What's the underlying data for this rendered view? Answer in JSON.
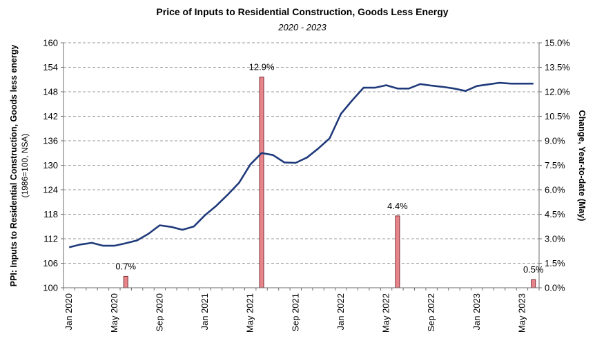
{
  "chart_data": {
    "type": "bar+line",
    "title": "Price of Inputs to Residential Construction, Goods Less Energy",
    "subtitle": "2020 - 2023",
    "ylabel_left": "PPI: Inputs to Residential Construction, Goods less energy",
    "ylabel_left_sub": "(1986=100, NSA)",
    "ylabel_right": "Change, Year-to-date (May)",
    "ylim_left": [
      100,
      160
    ],
    "yticks_left": [
      "100",
      "106",
      "112",
      "118",
      "124",
      "130",
      "136",
      "142",
      "148",
      "154",
      "160"
    ],
    "ylim_right": [
      0,
      15
    ],
    "yticks_right": [
      "0.0%",
      "1.5%",
      "3.0%",
      "4.5%",
      "6.0%",
      "7.5%",
      "9.0%",
      "10.5%",
      "12.0%",
      "13.5%",
      "15.0%"
    ],
    "grid": true,
    "x_tick_labels": [
      {
        "label": "Jan 2020",
        "index": 0
      },
      {
        "label": "May 2020",
        "index": 4
      },
      {
        "label": "Sep 2020",
        "index": 8
      },
      {
        "label": "Jan 2021",
        "index": 12
      },
      {
        "label": "May 2021",
        "index": 16
      },
      {
        "label": "Sep 2021",
        "index": 20
      },
      {
        "label": "Jan 2022",
        "index": 24
      },
      {
        "label": "May 2022",
        "index": 28
      },
      {
        "label": "Sep 2022",
        "index": 32
      },
      {
        "label": "Jan 2023",
        "index": 36
      },
      {
        "label": "May 2023",
        "index": 40
      }
    ],
    "line": {
      "color": "#1f3a7a",
      "values": [
        109.9,
        110.6,
        111.0,
        110.3,
        110.3,
        110.9,
        111.6,
        113.2,
        115.3,
        114.9,
        114.2,
        115.0,
        117.8,
        120.1,
        122.8,
        125.7,
        130.2,
        133.0,
        132.5,
        130.7,
        130.6,
        131.9,
        134.1,
        136.6,
        142.6,
        145.9,
        149.0,
        149.0,
        149.6,
        148.8,
        148.8,
        149.9,
        149.5,
        149.2,
        148.8,
        148.2,
        149.4,
        149.8,
        150.2,
        150.0,
        150.0,
        150.0
      ]
    },
    "bars": {
      "color": "#e8848b",
      "edge_color": "#7a2a2a",
      "items": [
        {
          "index": 5,
          "value": 0.7,
          "label": "0.7%"
        },
        {
          "index": 17,
          "value": 12.9,
          "label": "12.9%"
        },
        {
          "index": 29,
          "value": 4.4,
          "label": "4.4%"
        },
        {
          "index": 41,
          "value": 0.5,
          "label": "0.5%"
        }
      ]
    }
  }
}
